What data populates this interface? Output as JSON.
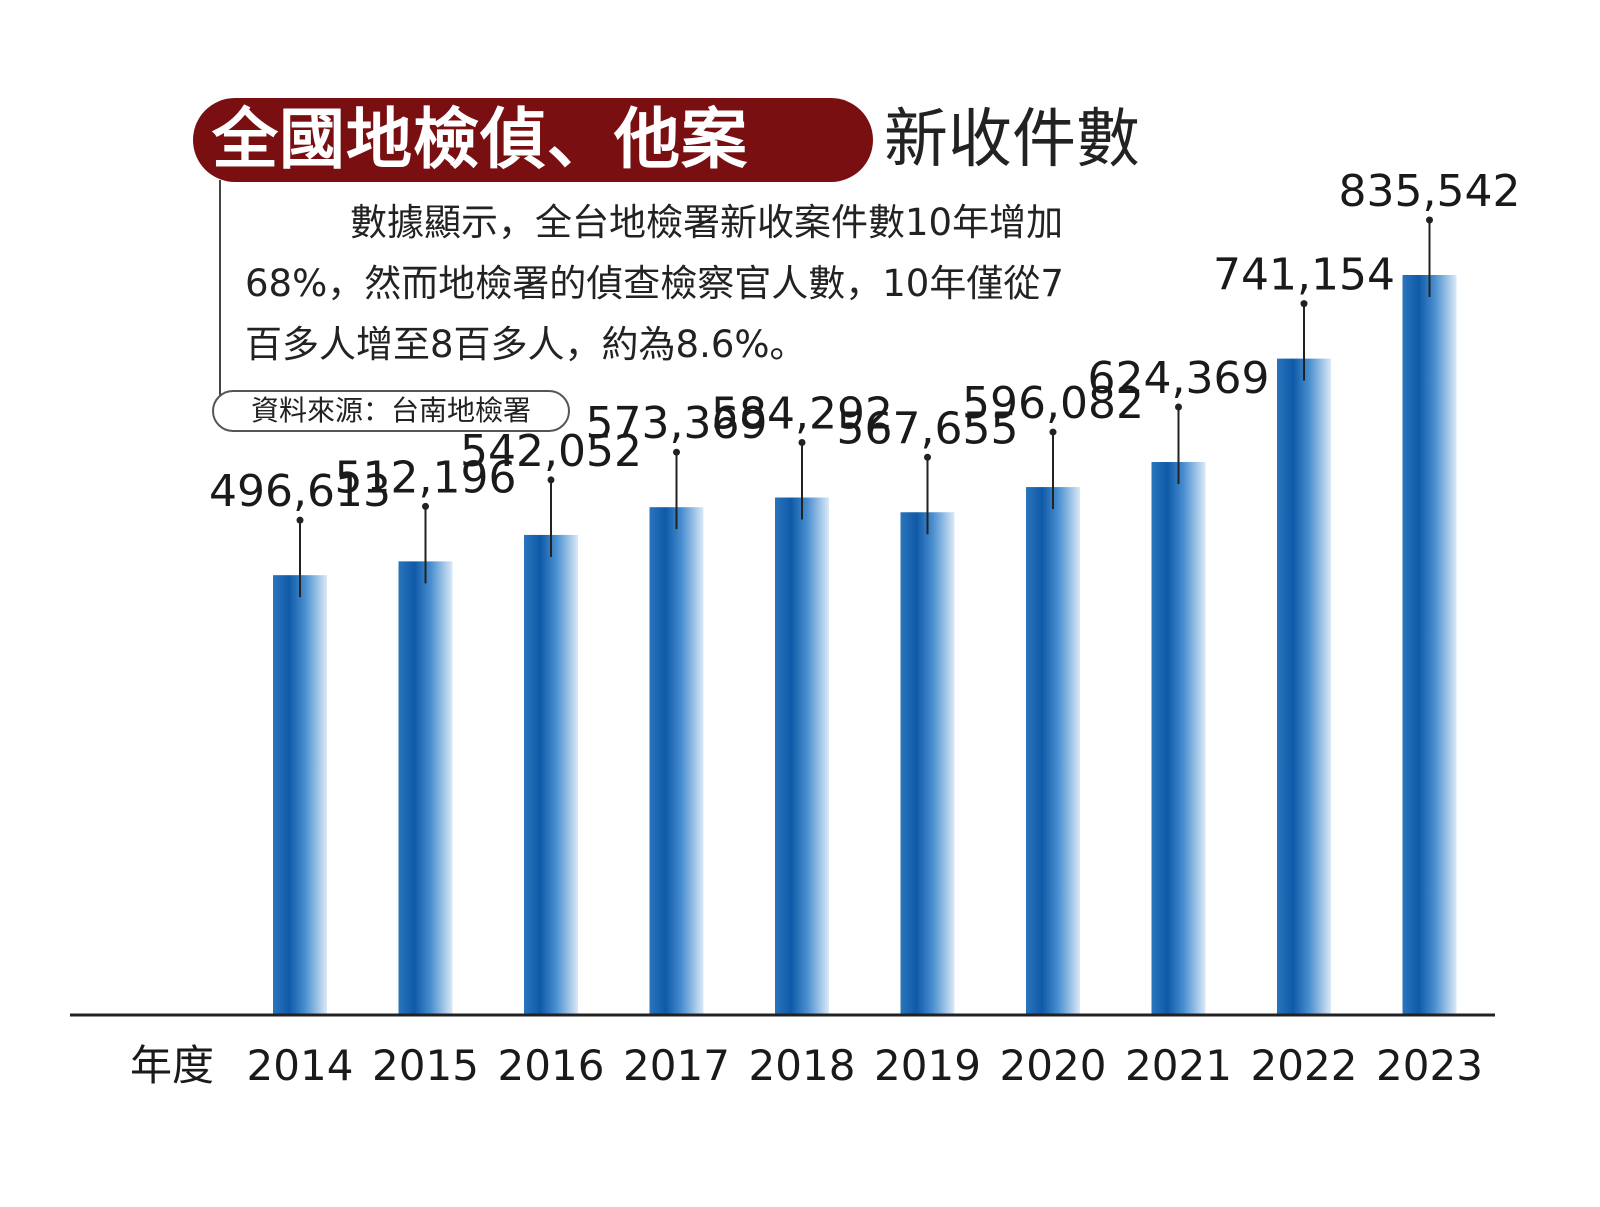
{
  "title": {
    "highlight": "全國地檢偵、他案",
    "rest": "新收件數"
  },
  "description": {
    "line1": "數據顯示，全台地檢署新收案件數10年增加",
    "line2": "68%，然而地檢署的偵查檢察官人數，10年僅從7",
    "line3": "百多人增至8百多人，約為8.6%。"
  },
  "source": "資料來源：台南地檢署",
  "colors": {
    "title_pill": "#7a0f12",
    "bar_dark": "#1560ad",
    "bar_light": "#d9e8f7",
    "axis": "#222222"
  },
  "chart_data": {
    "type": "bar",
    "x_axis_label": "年度",
    "categories": [
      "2014",
      "2015",
      "2016",
      "2017",
      "2018",
      "2019",
      "2020",
      "2021",
      "2022",
      "2023"
    ],
    "values": [
      496613,
      512196,
      542052,
      573369,
      584292,
      567655,
      596082,
      624369,
      741154,
      835542
    ],
    "value_labels": [
      "496,613",
      "512,196",
      "542,052",
      "573,369",
      "584,292",
      "567,655",
      "596,082",
      "624,369",
      "741,154",
      "835,542"
    ],
    "legend": "none",
    "grid": false
  }
}
